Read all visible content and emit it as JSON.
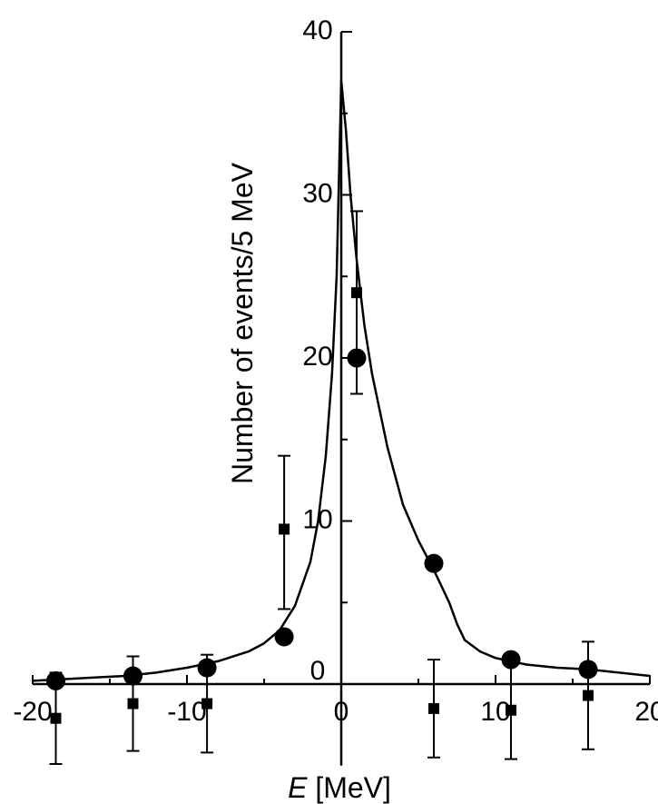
{
  "chart_data": {
    "type": "scatter",
    "title": "",
    "xlabel_var": "E",
    "xlabel_unit": " [MeV]",
    "ylabel": "Number of events/5 MeV",
    "xlim": [
      -20,
      20
    ],
    "ylim": [
      -5,
      40
    ],
    "x_ticks": [
      -20,
      -10,
      0,
      10,
      20
    ],
    "x_tick_labels": [
      "-20",
      "-10",
      "0",
      "10",
      "20"
    ],
    "y_ticks": [
      10,
      20,
      30,
      40
    ],
    "y_tick_labels": [
      "10",
      "20",
      "30",
      "40"
    ],
    "y_zero_label": "0",
    "grid": false,
    "legend": "none",
    "series": [
      {
        "marker": "circle",
        "points": [
          {
            "x": -18.5,
            "y": 0.2
          },
          {
            "x": -13.5,
            "y": 0.5
          },
          {
            "x": -8.7,
            "y": 1.0
          },
          {
            "x": -3.7,
            "y": 2.9
          },
          {
            "x": 1.0,
            "y": 20.0
          },
          {
            "x": 6.0,
            "y": 7.4
          },
          {
            "x": 11.0,
            "y": 1.5
          },
          {
            "x": 16.0,
            "y": 0.9
          }
        ]
      },
      {
        "marker": "square",
        "points": [
          {
            "x": -18.5,
            "y": -2.1,
            "err_low": 2.8,
            "err_high": 2.8
          },
          {
            "x": -13.5,
            "y": -1.2,
            "err_low": 2.9,
            "err_high": 2.9
          },
          {
            "x": -8.7,
            "y": -1.2,
            "err_low": 3.0,
            "err_high": 3.0
          },
          {
            "x": -3.7,
            "y": 9.5,
            "err_low": 4.9,
            "err_high": 4.5
          },
          {
            "x": 1.0,
            "y": 24.0,
            "err_low": 6.2,
            "err_high": 5.0
          },
          {
            "x": 6.0,
            "y": -1.5,
            "err_low": 3.0,
            "err_high": 3.0
          },
          {
            "x": 11.0,
            "y": -1.6,
            "err_low": 3.0,
            "err_high": 3.0
          },
          {
            "x": 16.0,
            "y": -0.7,
            "err_low": 3.3,
            "err_high": 3.3
          }
        ]
      }
    ],
    "fit_curve": {
      "x": [
        -20,
        -18,
        -16,
        -14,
        -12,
        -10,
        -8,
        -6,
        -5,
        -4,
        -3,
        -2,
        -1.5,
        -1,
        -0.6,
        -0.3,
        0,
        0.3,
        0.6,
        1,
        1.5,
        2,
        3,
        4,
        5,
        6,
        7,
        7.5,
        8,
        9,
        10,
        12,
        14,
        16,
        18,
        20
      ],
      "y": [
        0.2,
        0.3,
        0.4,
        0.5,
        0.7,
        1.0,
        1.4,
        2.0,
        2.5,
        3.3,
        4.8,
        7.5,
        10.0,
        14.0,
        19.0,
        25.0,
        37.0,
        34.0,
        30.0,
        26.0,
        22.0,
        19.0,
        14.5,
        11.0,
        8.8,
        7.0,
        5.0,
        3.7,
        2.7,
        2.0,
        1.6,
        1.2,
        1.0,
        0.9,
        0.7,
        0.5
      ]
    }
  }
}
